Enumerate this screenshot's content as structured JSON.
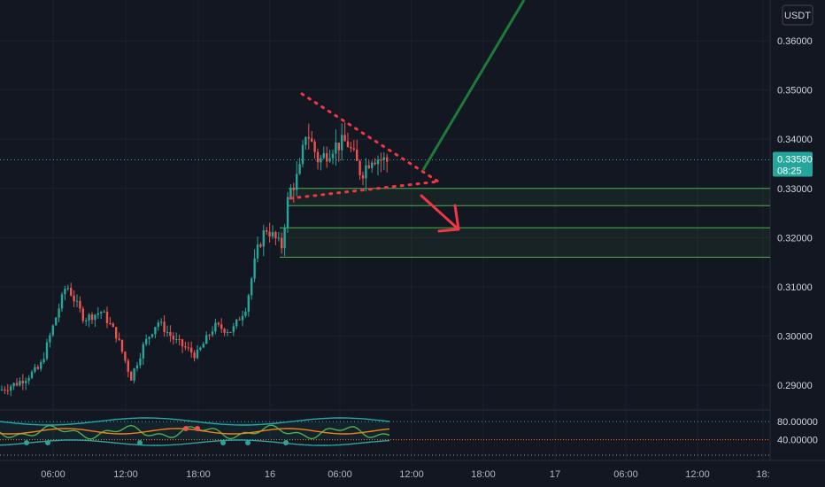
{
  "currency_button": "USDT",
  "price_badge": {
    "value": "0.33580",
    "countdown": "08:25",
    "color": "#26a69a"
  },
  "colors": {
    "up": "#26a69a",
    "down": "#ef5350",
    "zone_line": "#4caf50",
    "wedge": "#f23645",
    "arrow_up": "#1e7a3a",
    "arrow_down": "#f23645",
    "osc_blue": "#26a6a6",
    "osc_orange": "#f57f17",
    "osc_green": "#4caf50"
  },
  "chart_data": [
    {
      "type": "candlestick",
      "title": "",
      "x_ticks": [
        "06:00",
        "12:00",
        "18:00",
        "16",
        "06:00",
        "12:00",
        "18:00",
        "17",
        "06:00",
        "12:00",
        "18:"
      ],
      "y_ticks": [
        "0.36000",
        "0.35000",
        "0.34000",
        "0.33000",
        "0.32000",
        "0.31000",
        "0.30000",
        "0.29000"
      ],
      "ylim": [
        0.2855,
        0.3683
      ],
      "last_price": 0.3358,
      "support_zones": [
        {
          "top": 0.33,
          "bottom": 0.3265
        },
        {
          "top": 0.322,
          "bottom": 0.316
        }
      ],
      "wedge": {
        "upper": [
          [
            0.349,
            0.3312
          ],
          [
            0.3295,
            0.3312
          ]
        ]
      },
      "annotations": [
        "descending triangle",
        "breakout arrow up",
        "breakdown arrow down"
      ]
    },
    {
      "type": "line",
      "title": "",
      "y_ticks": [
        "80.00000",
        "40.00000"
      ],
      "levels": [
        80,
        40
      ]
    }
  ]
}
